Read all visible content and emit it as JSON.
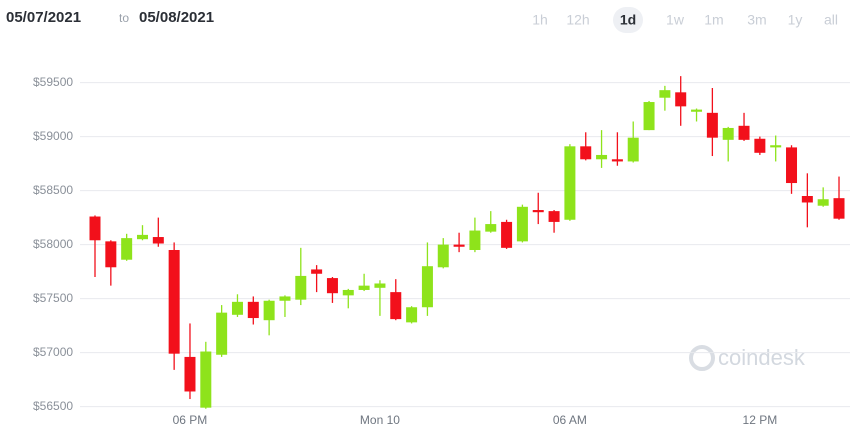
{
  "header": {
    "date_from": "05/07/2021",
    "connector": "to",
    "date_to": "05/08/2021",
    "ranges": [
      "1h",
      "12h",
      "1d",
      "1w",
      "1m",
      "3m",
      "1y",
      "all"
    ],
    "selected_range": "1d"
  },
  "chart_data": {
    "type": "candlestick",
    "watermark": "coindesk",
    "up_color": "#8ee31b",
    "down_color": "#f2101b",
    "categories": [
      null,
      null,
      null,
      null,
      null,
      null,
      "06 PM",
      null,
      null,
      null,
      null,
      null,
      null,
      null,
      null,
      null,
      null,
      null,
      "Mon 10",
      null,
      null,
      null,
      null,
      null,
      null,
      null,
      null,
      null,
      null,
      null,
      "06 AM",
      null,
      null,
      null,
      null,
      null,
      null,
      null,
      null,
      null,
      null,
      null,
      "12 PM",
      null,
      null,
      null,
      null,
      null
    ],
    "open": [
      58260,
      58030,
      57860,
      58050,
      58070,
      57950,
      56960,
      56490,
      56980,
      57350,
      57470,
      57300,
      57480,
      57490,
      57770,
      57690,
      57530,
      57580,
      57600,
      57560,
      57280,
      57420,
      57790,
      58000,
      57950,
      58120,
      58210,
      58030,
      58320,
      58310,
      58230,
      58910,
      58790,
      58790,
      58770,
      59060,
      59360,
      59410,
      59230,
      59220,
      58970,
      59100,
      58980,
      58900,
      58900,
      58450,
      58360,
      58430
    ],
    "high": [
      58270,
      58040,
      58100,
      58180,
      58250,
      58020,
      57270,
      57100,
      57440,
      57540,
      57520,
      57490,
      57530,
      57970,
      57810,
      57700,
      57590,
      57730,
      57670,
      57680,
      57430,
      58020,
      58060,
      58110,
      58250,
      58310,
      58230,
      58370,
      58480,
      58320,
      58930,
      59040,
      59060,
      59040,
      59140,
      59330,
      59470,
      59560,
      59260,
      59450,
      59090,
      59220,
      59000,
      59010,
      58920,
      58660,
      58530,
      58630
    ],
    "low": [
      57700,
      57620,
      57850,
      58040,
      57980,
      56840,
      56570,
      56480,
      56960,
      57330,
      57260,
      57160,
      57330,
      57440,
      57560,
      57460,
      57410,
      57570,
      57340,
      57300,
      57270,
      57340,
      57780,
      57930,
      57930,
      58110,
      57960,
      58020,
      58190,
      58110,
      58220,
      58780,
      58710,
      58730,
      58760,
      59060,
      59240,
      59100,
      59140,
      58820,
      58770,
      58960,
      58830,
      58770,
      58470,
      58160,
      58350,
      58230
    ],
    "close": [
      58040,
      57790,
      58060,
      58090,
      58010,
      56990,
      56640,
      57010,
      57370,
      57470,
      57320,
      57480,
      57520,
      57710,
      57730,
      57550,
      57580,
      57620,
      57640,
      57310,
      57420,
      57800,
      58000,
      57980,
      58130,
      58190,
      57970,
      58350,
      58300,
      58210,
      58910,
      58790,
      58830,
      58770,
      58990,
      59320,
      59430,
      59280,
      59250,
      58990,
      59080,
      58970,
      58850,
      58920,
      58570,
      58390,
      58420,
      58240
    ],
    "ylim": [
      56450,
      59700
    ],
    "yticks": [
      {
        "value": 56500,
        "label": "$56500"
      },
      {
        "value": 57000,
        "label": "$57000"
      },
      {
        "value": 57500,
        "label": "$57500"
      },
      {
        "value": 58000,
        "label": "$58000"
      },
      {
        "value": 58500,
        "label": "$58500"
      },
      {
        "value": 59000,
        "label": "$59000"
      },
      {
        "value": 59500,
        "label": "$59500"
      }
    ],
    "grid": true
  }
}
